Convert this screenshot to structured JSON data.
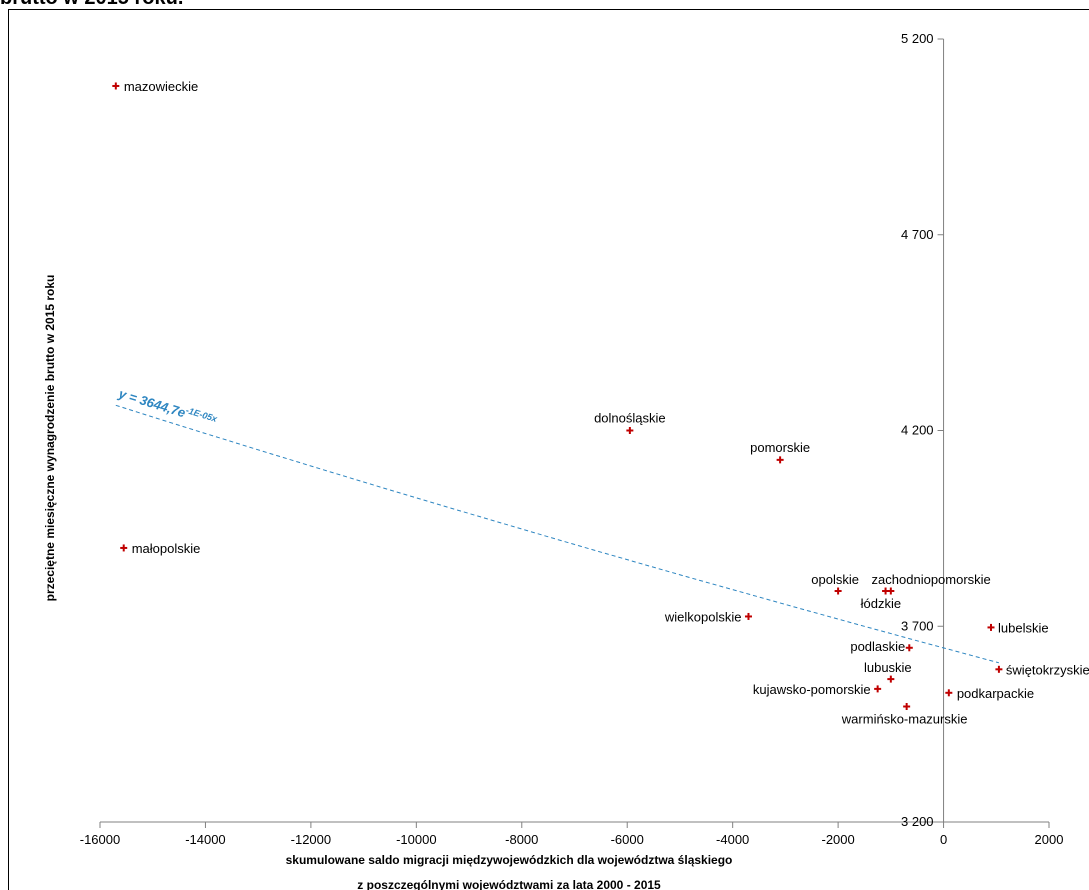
{
  "title_fragment": "brutto w 2015 roku.",
  "chart_data": {
    "type": "scatter",
    "xlabel": [
      "skumulowane saldo migracji międzywojewódzkich dla województwa śląskiego",
      "z poszczególnymi województwami za lata 2000 - 2015"
    ],
    "ylabel": "przeciętne miesięczne wynagrodzenie brutto w 2015 roku",
    "xlim": [
      -16000,
      2000
    ],
    "ylim": [
      3200,
      5200
    ],
    "x_ticks": [
      -16000,
      -14000,
      -12000,
      -10000,
      -8000,
      -6000,
      -4000,
      -2000,
      0,
      2000
    ],
    "y_ticks": [
      3200,
      3700,
      4200,
      4700,
      5200
    ],
    "y_tick_labels": [
      "3 200",
      "3 700",
      "4 200",
      "4 700",
      "5 200"
    ],
    "point_color": "#c00000",
    "trend_color": "#2e86c1",
    "trendline": {
      "type": "exponential",
      "a": 3644.7,
      "b": -1e-05,
      "x_range": [
        -15700,
        1050
      ],
      "label": "y = 3644,7e",
      "label_exponent": "-1E-05x"
    },
    "points": [
      {
        "label": "mazowieckie",
        "x": -15700,
        "y": 5080
      },
      {
        "label": "małopolskie",
        "x": -15550,
        "y": 3900
      },
      {
        "label": "dolnośląskie",
        "x": -5950,
        "y": 4200
      },
      {
        "label": "pomorskie",
        "x": -3100,
        "y": 4125
      },
      {
        "label": "opolskie",
        "x": -2000,
        "y": 3790
      },
      {
        "label": "zachodniopomorskie",
        "x": -1100,
        "y": 3790
      },
      {
        "label": "łódzkie",
        "x": -1000,
        "y": 3790
      },
      {
        "label": "wielkopolskie",
        "x": -3700,
        "y": 3725
      },
      {
        "label": "lubelskie",
        "x": 900,
        "y": 3697
      },
      {
        "label": "podlaskie",
        "x": -650,
        "y": 3645
      },
      {
        "label": "świętokrzyskie",
        "x": 1050,
        "y": 3590
      },
      {
        "label": "lubuskie",
        "x": -1000,
        "y": 3565
      },
      {
        "label": "kujawsko-pomorskie",
        "x": -1250,
        "y": 3540
      },
      {
        "label": "podkarpackie",
        "x": 100,
        "y": 3530
      },
      {
        "label": "warmińsko-mazurskie",
        "x": -700,
        "y": 3495
      }
    ]
  }
}
